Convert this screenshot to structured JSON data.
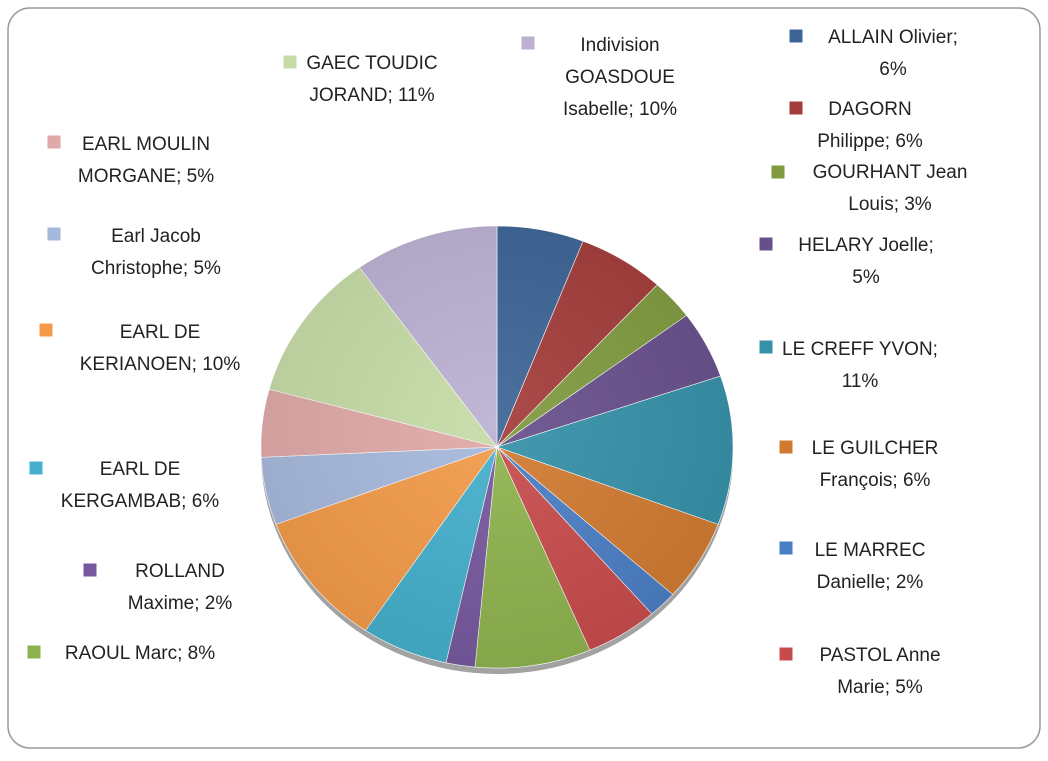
{
  "chart_data": {
    "type": "pie",
    "values": [
      6,
      6,
      3,
      5,
      11,
      6,
      2,
      5,
      8,
      2,
      6,
      10,
      5,
      5,
      11,
      10
    ],
    "value_labels": [
      [
        "ALLAIN Olivier;",
        "6%"
      ],
      [
        "DAGORN",
        "Philippe; 6%"
      ],
      [
        "GOURHANT Jean",
        "Louis; 3%"
      ],
      [
        "HELARY Joelle;",
        "5%"
      ],
      [
        "LE CREFF YVON;",
        "11%"
      ],
      [
        "LE GUILCHER",
        "François; 6%"
      ],
      [
        "LE MARREC",
        "Danielle; 2%"
      ],
      [
        "PASTOL Anne",
        "Marie; 5%"
      ],
      [
        "RAOUL Marc; 8%"
      ],
      [
        "ROLLAND",
        "Maxime; 2%"
      ],
      [
        "EARL DE",
        "KERGAMBAB; 6%"
      ],
      [
        "EARL DE",
        "KERIANOEN; 10%"
      ],
      [
        "Earl Jacob",
        "Christophe; 5%"
      ],
      [
        "EARL MOULIN",
        "MORGANE; 5%"
      ],
      [
        "GAEC TOUDIC",
        "JORAND; 11%"
      ],
      [
        "Indivision",
        "GOASDOUE",
        "Isabelle; 10%"
      ]
    ],
    "colors": [
      "#3c6496",
      "#a33c3a",
      "#7f9a3f",
      "#674f8b",
      "#3590a8",
      "#d07a30",
      "#4a7ec4",
      "#c84b4b",
      "#8eb34e",
      "#76589e",
      "#44afcb",
      "#f29a48",
      "#a6b8dc",
      "#e0a8a8",
      "#c6dba6",
      "#bbb0d2"
    ]
  }
}
